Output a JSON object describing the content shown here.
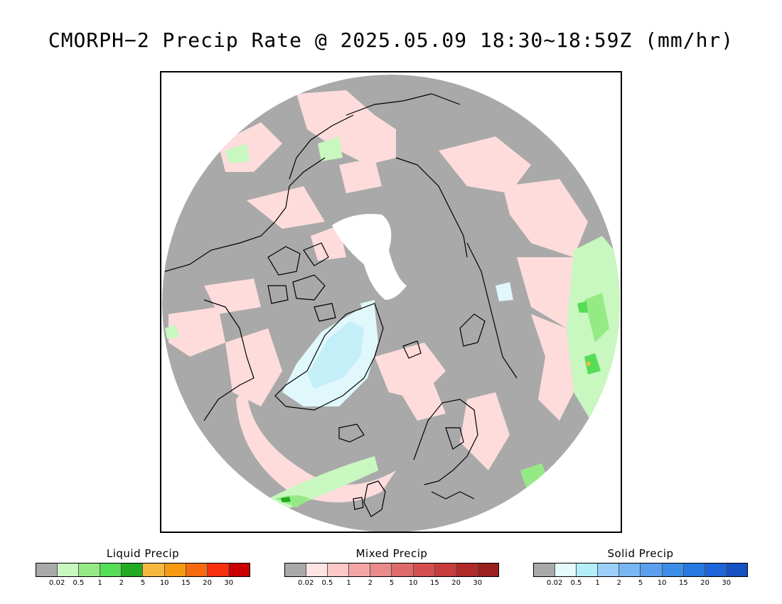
{
  "title": "CMORPH−2 Precip Rate @ 2025.05.09 18:30~18:59Z (mm/hr)",
  "map": {
    "projection": "north polar stereographic",
    "colors": {
      "no_data_bg": "#ffffff",
      "zero_precip": "#a9a9a9",
      "coastline": "#000000",
      "ice_cap": "#ffffff"
    }
  },
  "legends": [
    {
      "id": "liquid",
      "title": "Liquid Precip",
      "colors": [
        "#a9a9a9",
        "#c8f7c0",
        "#96ea86",
        "#55dd55",
        "#22aa22",
        "#f8b840",
        "#f89a10",
        "#f86a10",
        "#f83010",
        "#c80000"
      ],
      "ticks": [
        "0.02",
        "0.5",
        "1",
        "2",
        "5",
        "10",
        "15",
        "20",
        "30"
      ]
    },
    {
      "id": "mixed",
      "title": "Mixed Precip",
      "colors": [
        "#a9a9a9",
        "#ffe4e4",
        "#ffc8c8",
        "#f4a6a6",
        "#ea8a8a",
        "#df6a6a",
        "#d45050",
        "#c83c3c",
        "#b02a2a",
        "#9a2020"
      ],
      "ticks": [
        "0.02",
        "0.5",
        "1",
        "2",
        "5",
        "10",
        "15",
        "20",
        "30"
      ]
    },
    {
      "id": "solid",
      "title": "Solid Precip",
      "colors": [
        "#a9a9a9",
        "#e4fcfc",
        "#b4eefa",
        "#9ad0fa",
        "#78b6f4",
        "#5aa0ee",
        "#3c8ee8",
        "#2878e0",
        "#1c64d8",
        "#1452c4"
      ],
      "ticks": [
        "0.02",
        "0.5",
        "1",
        "2",
        "5",
        "10",
        "15",
        "20",
        "30"
      ]
    }
  ]
}
